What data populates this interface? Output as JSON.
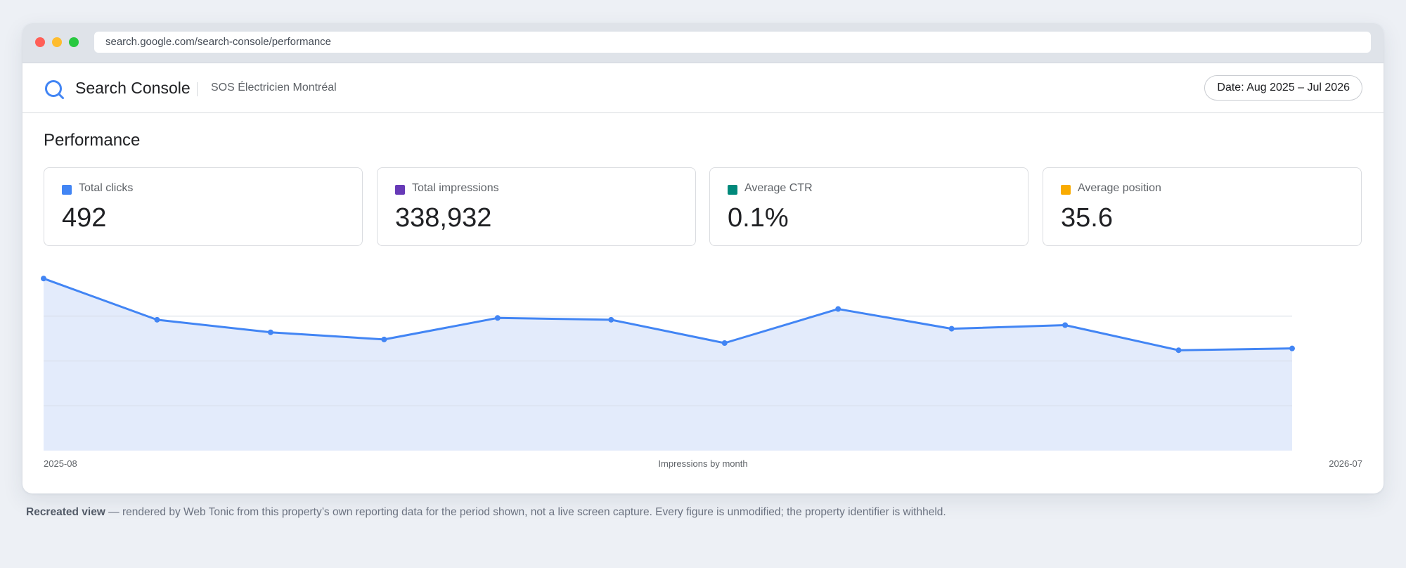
{
  "browser": {
    "url": "search.google.com/search-console/performance"
  },
  "header": {
    "app_title": "Search Console",
    "property": "SOS Électricien Montréal",
    "date_range": "Date: Aug 2025 – Jul 2026"
  },
  "page": {
    "title": "Performance"
  },
  "metrics": [
    {
      "label": "Total clicks",
      "value": "492",
      "color": "#4285f4"
    },
    {
      "label": "Total impressions",
      "value": "338,932",
      "color": "#673ab7"
    },
    {
      "label": "Average CTR",
      "value": "0.1%",
      "color": "#00897b"
    },
    {
      "label": "Average position",
      "value": "35.6",
      "color": "#f9ab00"
    }
  ],
  "chart_data": {
    "type": "area",
    "title": "Impressions by month",
    "x_start_label": "2025-08",
    "x_end_label": "2026-07",
    "color": "#4285f4",
    "fill": "#e3ebfb",
    "grid": true,
    "ylim": [
      0,
      1
    ],
    "values": [
      0.96,
      0.73,
      0.66,
      0.62,
      0.74,
      0.73,
      0.6,
      0.79,
      0.68,
      0.7,
      0.56,
      0.57
    ]
  },
  "footnote": {
    "bold": "Recreated view",
    "text": " — rendered by Web Tonic from this property’s own reporting data for the period shown, not a live screen capture. Every figure is unmodified; the property identifier is withheld."
  }
}
